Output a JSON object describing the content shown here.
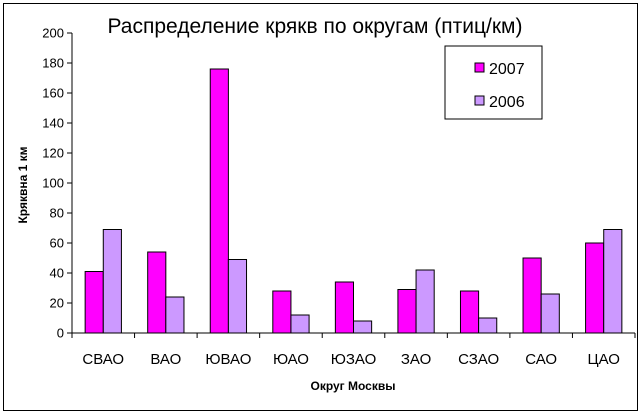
{
  "chart_data": {
    "type": "bar",
    "title": "Распределение крякв по округам (птиц/км)",
    "xlabel": "Округ Москвы",
    "ylabel": "Кряквна 1 км",
    "categories": [
      "СВАО",
      "ВАО",
      "ЮВАО",
      "ЮАО",
      "ЮЗАО",
      "ЗАО",
      "СЗАО",
      "САО",
      "ЦАО"
    ],
    "series": [
      {
        "name": "2007",
        "color": "#ff00ff",
        "values": [
          41,
          54,
          176,
          28,
          34,
          29,
          28,
          50,
          60
        ]
      },
      {
        "name": "2006",
        "color": "#cc99ff",
        "values": [
          69,
          24,
          49,
          12,
          8,
          42,
          10,
          26,
          69
        ]
      }
    ],
    "ylim": [
      0,
      200
    ],
    "yticks": [
      0,
      20,
      40,
      60,
      80,
      100,
      120,
      140,
      160,
      180,
      200
    ],
    "grid": false,
    "legend": "top-right"
  }
}
